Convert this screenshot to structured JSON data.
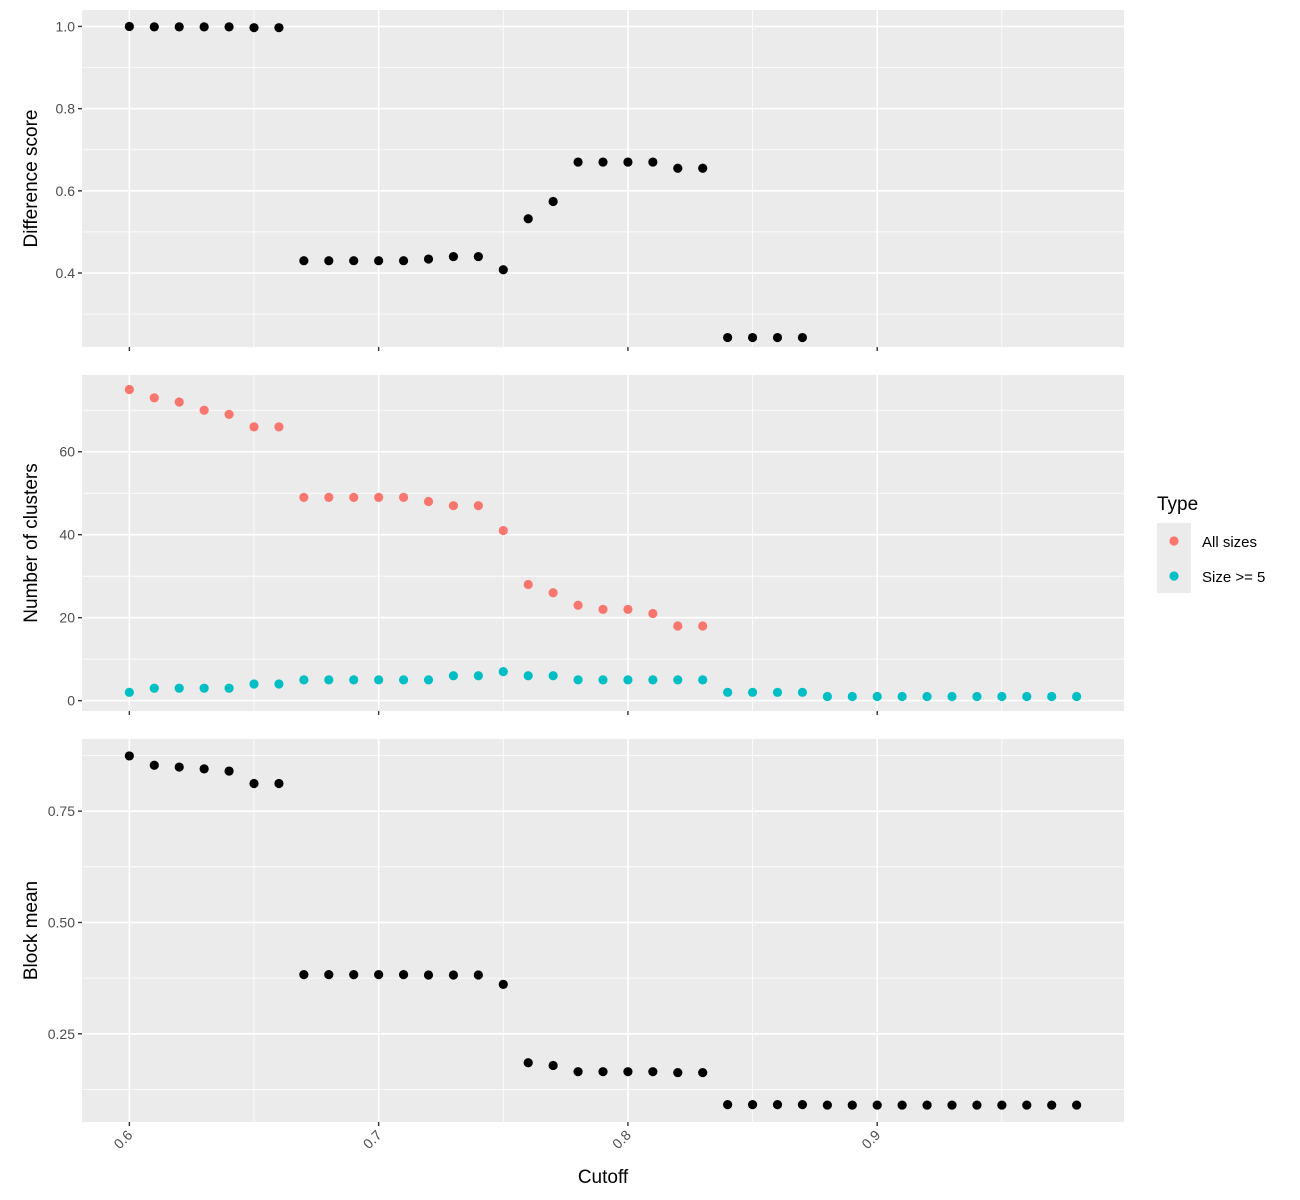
{
  "chart_data": [
    {
      "type": "scatter",
      "ylabel": "Difference score",
      "y_ticks": [
        0.4,
        0.6,
        0.8,
        1.0
      ],
      "y_tick_labels": [
        "0.4",
        "0.6",
        "0.8",
        "1.0"
      ],
      "ylim": [
        0.22,
        1.04
      ],
      "series": [
        {
          "color": "#000000",
          "x": [
            0.6,
            0.61,
            0.62,
            0.63,
            0.64,
            0.65,
            0.66,
            0.67,
            0.68,
            0.69,
            0.7,
            0.71,
            0.72,
            0.73,
            0.74,
            0.75,
            0.76,
            0.77,
            0.78,
            0.79,
            0.8,
            0.81,
            0.82,
            0.83,
            0.84,
            0.85,
            0.86,
            0.87
          ],
          "y": [
            1.0,
            0.999,
            0.999,
            0.999,
            0.999,
            0.997,
            0.997,
            0.43,
            0.43,
            0.43,
            0.43,
            0.43,
            0.434,
            0.44,
            0.44,
            0.408,
            0.532,
            0.574,
            0.67,
            0.67,
            0.67,
            0.67,
            0.655,
            0.655,
            0.243,
            0.243,
            0.243,
            0.243
          ]
        }
      ]
    },
    {
      "type": "scatter",
      "ylabel": "Number of clusters",
      "y_ticks": [
        0,
        20,
        40,
        60
      ],
      "y_tick_labels": [
        "0",
        "20",
        "40",
        "60"
      ],
      "ylim": [
        -2.5,
        78.5
      ],
      "legend": {
        "title": "Type",
        "position": "right"
      },
      "series": [
        {
          "name": "All sizes",
          "color": "#f8766d",
          "x": [
            0.6,
            0.61,
            0.62,
            0.63,
            0.64,
            0.65,
            0.66,
            0.67,
            0.68,
            0.69,
            0.7,
            0.71,
            0.72,
            0.73,
            0.74,
            0.75,
            0.76,
            0.77,
            0.78,
            0.79,
            0.8,
            0.81,
            0.82,
            0.83
          ],
          "y": [
            75,
            73,
            72,
            70,
            69,
            66,
            66,
            49,
            49,
            49,
            49,
            49,
            48,
            47,
            47,
            41,
            28,
            26,
            23,
            22,
            22,
            21,
            18,
            18
          ]
        },
        {
          "name": "Size >= 5",
          "color": "#00bfc4",
          "x": [
            0.6,
            0.61,
            0.62,
            0.63,
            0.64,
            0.65,
            0.66,
            0.67,
            0.68,
            0.69,
            0.7,
            0.71,
            0.72,
            0.73,
            0.74,
            0.75,
            0.76,
            0.77,
            0.78,
            0.79,
            0.8,
            0.81,
            0.82,
            0.83,
            0.84,
            0.85,
            0.86,
            0.87,
            0.88,
            0.89,
            0.9,
            0.91,
            0.92,
            0.93,
            0.94,
            0.95,
            0.96,
            0.97,
            0.98
          ],
          "y": [
            2,
            3,
            3,
            3,
            3,
            4,
            4,
            5,
            5,
            5,
            5,
            5,
            5,
            6,
            6,
            7,
            6,
            6,
            5,
            5,
            5,
            5,
            5,
            5,
            2,
            2,
            2,
            2,
            1,
            1,
            1,
            1,
            1,
            1,
            1,
            1,
            1,
            1,
            1
          ]
        }
      ]
    },
    {
      "type": "scatter",
      "ylabel": "Block mean",
      "xlabel": "Cutoff",
      "y_ticks": [
        0.25,
        0.5,
        0.75
      ],
      "y_tick_labels": [
        "0.25",
        "0.50",
        "0.75"
      ],
      "ylim": [
        0.052,
        0.912
      ],
      "series": [
        {
          "color": "#000000",
          "x": [
            0.6,
            0.61,
            0.62,
            0.63,
            0.64,
            0.65,
            0.66,
            0.67,
            0.68,
            0.69,
            0.7,
            0.71,
            0.72,
            0.73,
            0.74,
            0.75,
            0.76,
            0.77,
            0.78,
            0.79,
            0.8,
            0.81,
            0.82,
            0.83,
            0.84,
            0.85,
            0.86,
            0.87,
            0.88,
            0.89,
            0.9,
            0.91,
            0.92,
            0.93,
            0.94,
            0.95,
            0.96,
            0.97,
            0.98
          ],
          "y": [
            0.874,
            0.853,
            0.849,
            0.845,
            0.84,
            0.812,
            0.812,
            0.383,
            0.383,
            0.383,
            0.383,
            0.383,
            0.382,
            0.382,
            0.382,
            0.361,
            0.185,
            0.179,
            0.165,
            0.165,
            0.165,
            0.165,
            0.163,
            0.163,
            0.091,
            0.091,
            0.091,
            0.091,
            0.09,
            0.09,
            0.09,
            0.09,
            0.09,
            0.09,
            0.09,
            0.09,
            0.09,
            0.09,
            0.09
          ]
        }
      ]
    }
  ],
  "x_axis": {
    "label": "Cutoff",
    "ticks": [
      0.6,
      0.7,
      0.8,
      0.9
    ],
    "tick_labels": [
      "0.6",
      "0.7",
      "0.8",
      "0.9"
    ],
    "xlim": [
      0.581,
      0.999
    ]
  },
  "legend": {
    "title": "Type",
    "items": [
      {
        "label": "All sizes",
        "color": "#f8766d"
      },
      {
        "label": "Size >= 5",
        "color": "#00bfc4"
      }
    ]
  }
}
